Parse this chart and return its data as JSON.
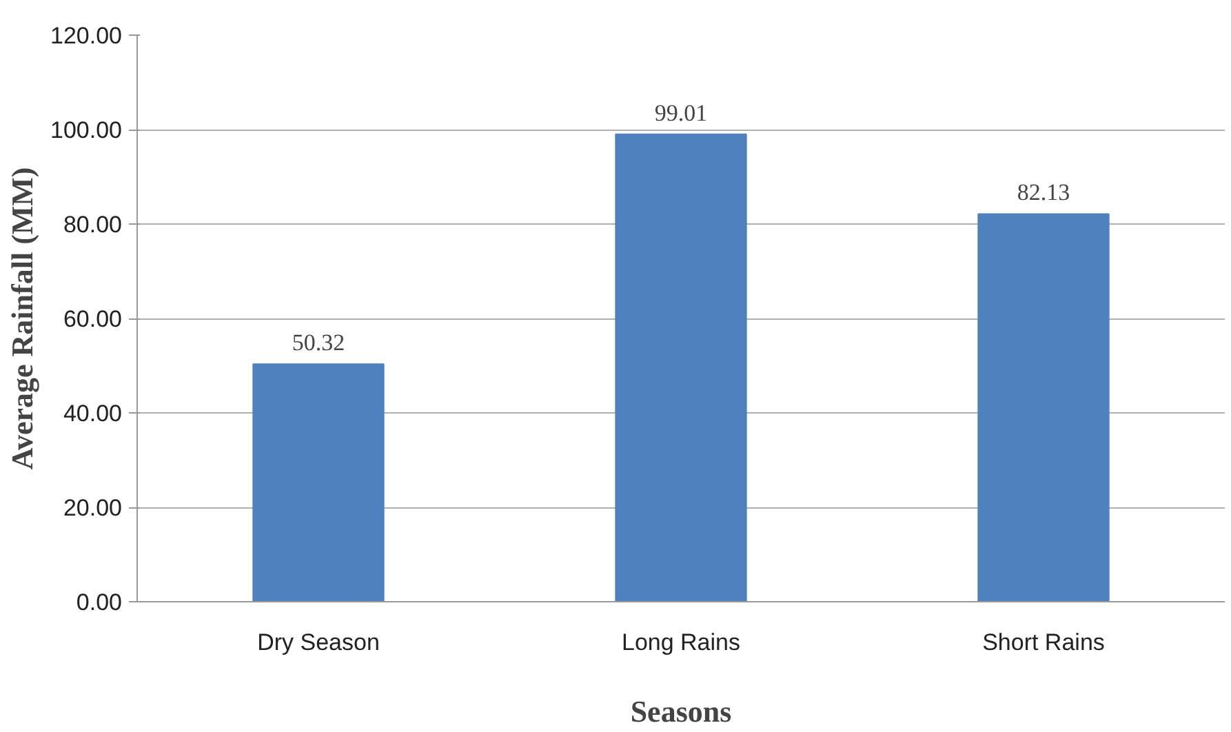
{
  "chart_data": {
    "type": "bar",
    "xlabel": "Seasons",
    "ylabel": "Average Rainfall (MM)",
    "categories": [
      "Dry Season",
      "Long Rains",
      "Short Rains"
    ],
    "values": [
      50.32,
      99.01,
      82.13
    ],
    "color": "#4f81bd",
    "ylim": [
      0,
      120
    ],
    "yticks": [
      {
        "value": 0,
        "label": "0.00"
      },
      {
        "value": 20,
        "label": "20.00"
      },
      {
        "value": 40,
        "label": "40.00"
      },
      {
        "value": 60,
        "label": "60.00"
      },
      {
        "value": 80,
        "label": "80.00"
      },
      {
        "value": 100,
        "label": "100.00"
      },
      {
        "value": 120,
        "label": "120.00"
      }
    ],
    "grid": "y",
    "data_labels": true
  }
}
